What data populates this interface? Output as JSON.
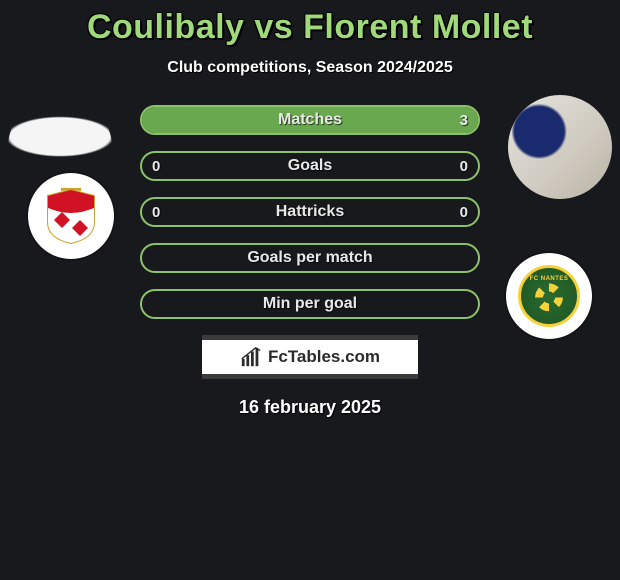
{
  "title": "Coulibaly vs Florent Mollet",
  "title_color": "#9fd97a",
  "subtitle": "Club competitions, Season 2024/2025",
  "date": "16 february 2025",
  "brand": "FcTables.com",
  "teams": {
    "left": {
      "name": "AS Monaco",
      "crest_bg": "#ffffff"
    },
    "right": {
      "name": "FC Nantes",
      "crest_bg": "#ffffff"
    }
  },
  "bars": {
    "border_color": "#8cc36a",
    "fill_left_color": "#6aa84f",
    "fill_right_color": "#6aa84f",
    "rows": [
      {
        "label": "Matches",
        "left": "",
        "right": "3",
        "fill_left_pct": 0,
        "fill_right_pct": 100
      },
      {
        "label": "Goals",
        "left": "0",
        "right": "0",
        "fill_left_pct": 0,
        "fill_right_pct": 0
      },
      {
        "label": "Hattricks",
        "left": "0",
        "right": "0",
        "fill_left_pct": 0,
        "fill_right_pct": 0
      },
      {
        "label": "Goals per match",
        "left": "",
        "right": "",
        "fill_left_pct": 0,
        "fill_right_pct": 0
      },
      {
        "label": "Min per goal",
        "left": "",
        "right": "",
        "fill_left_pct": 0,
        "fill_right_pct": 0
      }
    ]
  }
}
